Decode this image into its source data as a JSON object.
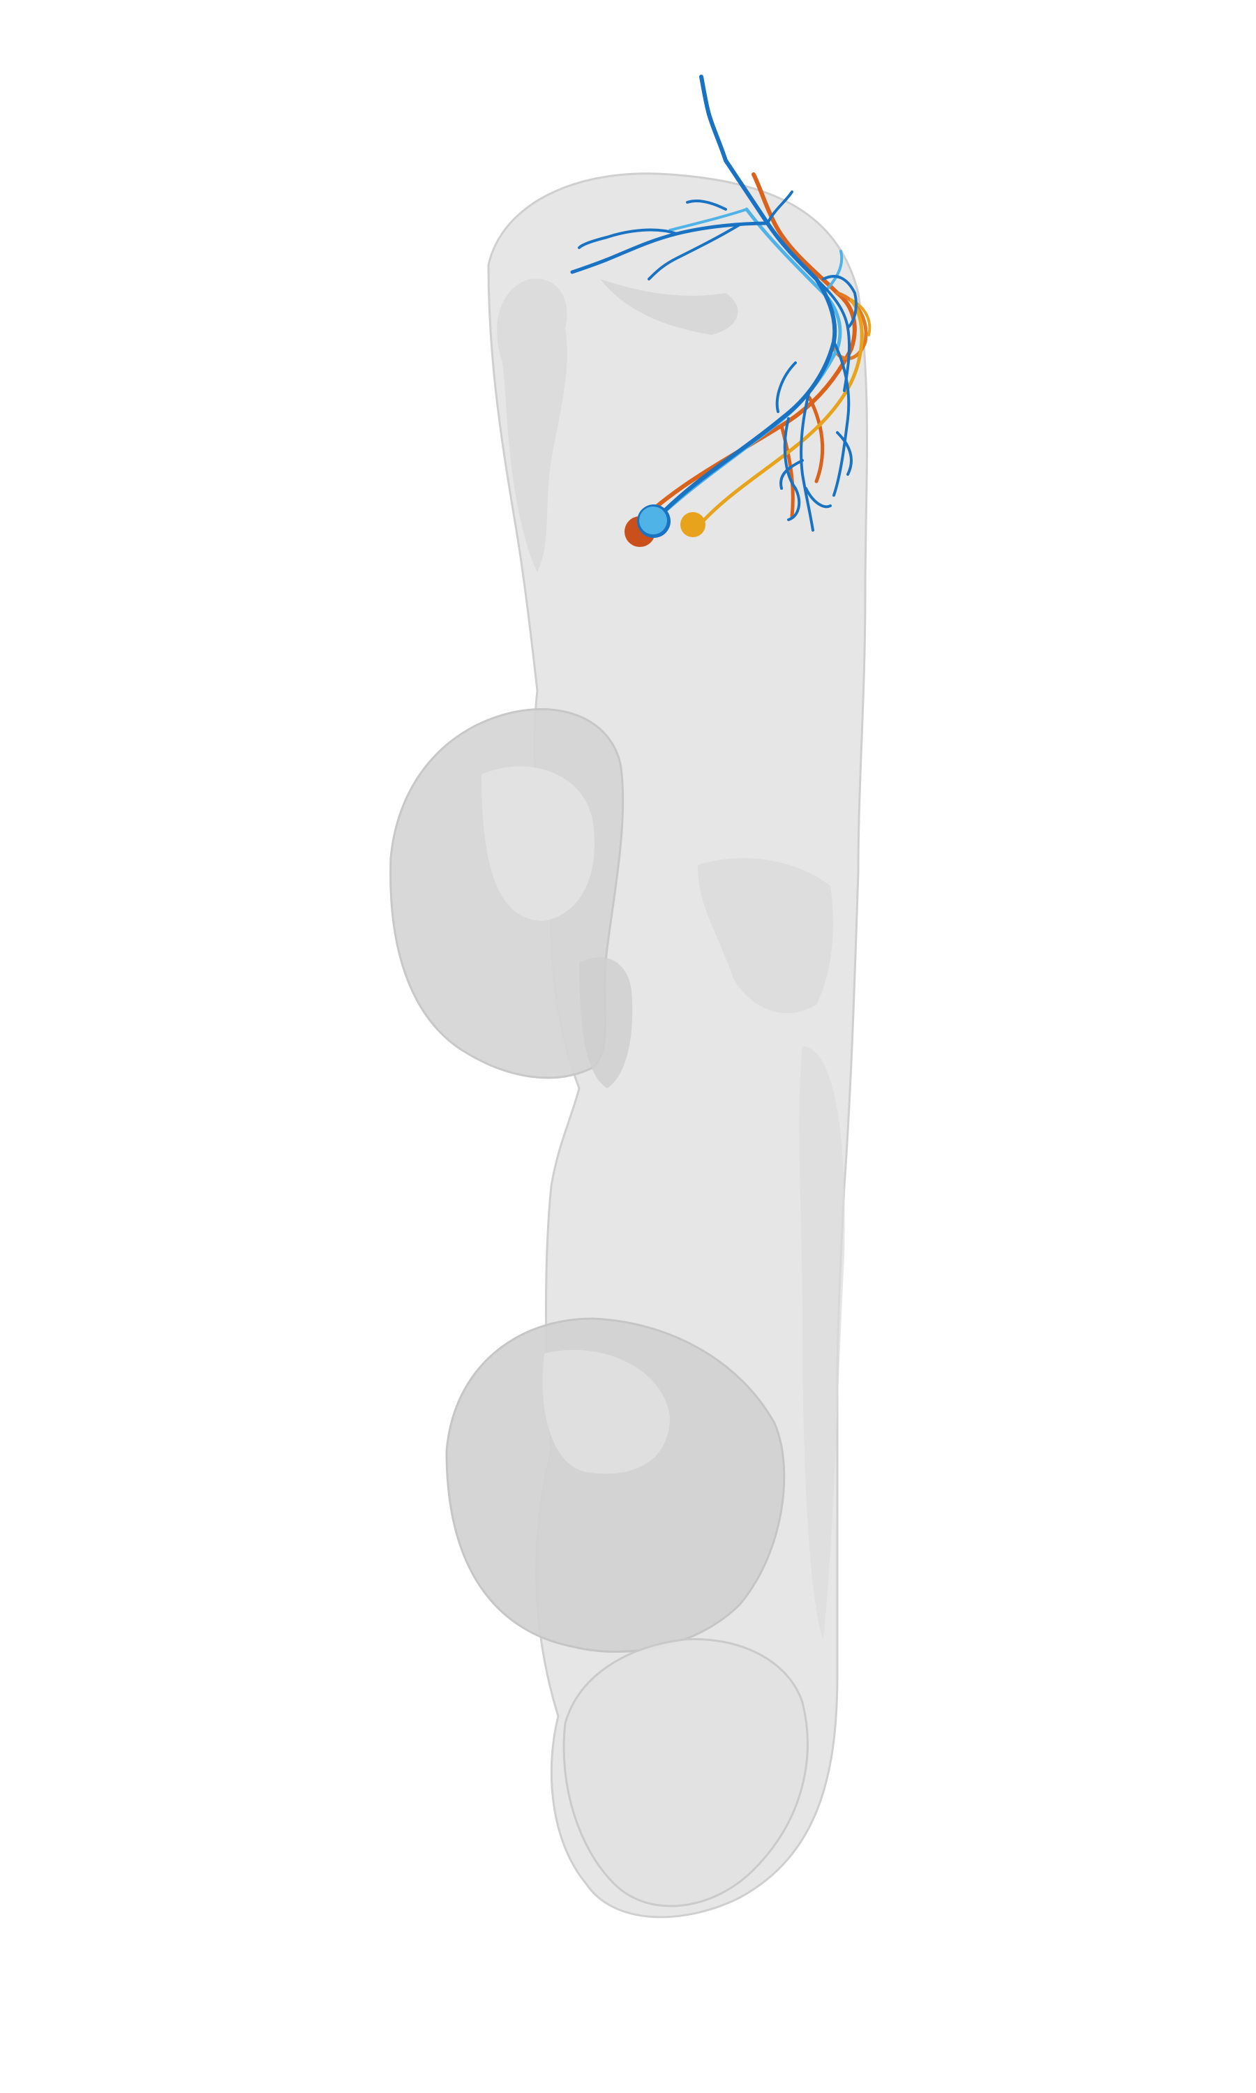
{
  "scene": {
    "background": "#ffffff",
    "brain_region": {
      "name": "neuropil-mesh",
      "fill_light": "#e6e6e6",
      "fill_mid": "#d6d6d6",
      "fill_dark": "#c9c9c9",
      "outline": "#bdbdbd"
    },
    "neurons": [
      {
        "id": "neuron-blue",
        "color": "#1a73c2",
        "soma_color": "#1a73c2"
      },
      {
        "id": "neuron-lightblue",
        "color": "#4fb3e8",
        "soma_color": "#4fb3e8"
      },
      {
        "id": "neuron-orange",
        "color": "#d9621c",
        "soma_color": "#c9501a"
      },
      {
        "id": "neuron-gold",
        "color": "#e8a31c",
        "soma_color": "#e8a31c"
      }
    ]
  }
}
